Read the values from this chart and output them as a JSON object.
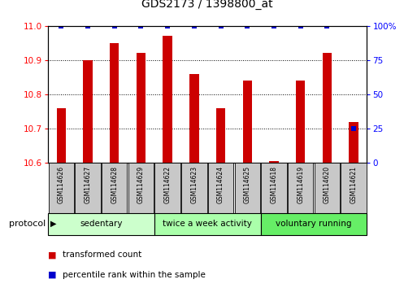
{
  "title": "GDS2173 / 1398800_at",
  "samples": [
    "GSM114626",
    "GSM114627",
    "GSM114628",
    "GSM114629",
    "GSM114622",
    "GSM114623",
    "GSM114624",
    "GSM114625",
    "GSM114618",
    "GSM114619",
    "GSM114620",
    "GSM114621"
  ],
  "transformed_count": [
    10.76,
    10.9,
    10.95,
    10.92,
    10.97,
    10.86,
    10.76,
    10.84,
    10.605,
    10.84,
    10.92,
    10.72
  ],
  "percentile_rank": [
    100,
    100,
    100,
    100,
    100,
    100,
    100,
    100,
    100,
    100,
    100,
    25
  ],
  "groups": [
    {
      "label": "sedentary",
      "indices": [
        0,
        1,
        2,
        3
      ],
      "color": "#ccffcc"
    },
    {
      "label": "twice a week activity",
      "indices": [
        4,
        5,
        6,
        7
      ],
      "color": "#aaffaa"
    },
    {
      "label": "voluntary running",
      "indices": [
        8,
        9,
        10,
        11
      ],
      "color": "#66ee66"
    }
  ],
  "ylim": [
    10.6,
    11.0
  ],
  "yticks_left": [
    10.6,
    10.7,
    10.8,
    10.9,
    11.0
  ],
  "yticks_right_vals": [
    0,
    25,
    50,
    75,
    100
  ],
  "yticks_right_labels": [
    "0",
    "25",
    "50",
    "75",
    "100%"
  ],
  "bar_color": "#cc0000",
  "dot_color": "#0000cc",
  "bg_plot": "#ffffff",
  "bg_sample_box": "#c8c8c8",
  "protocol_label": "protocol",
  "legend_count_label": "transformed count",
  "legend_pct_label": "percentile rank within the sample"
}
